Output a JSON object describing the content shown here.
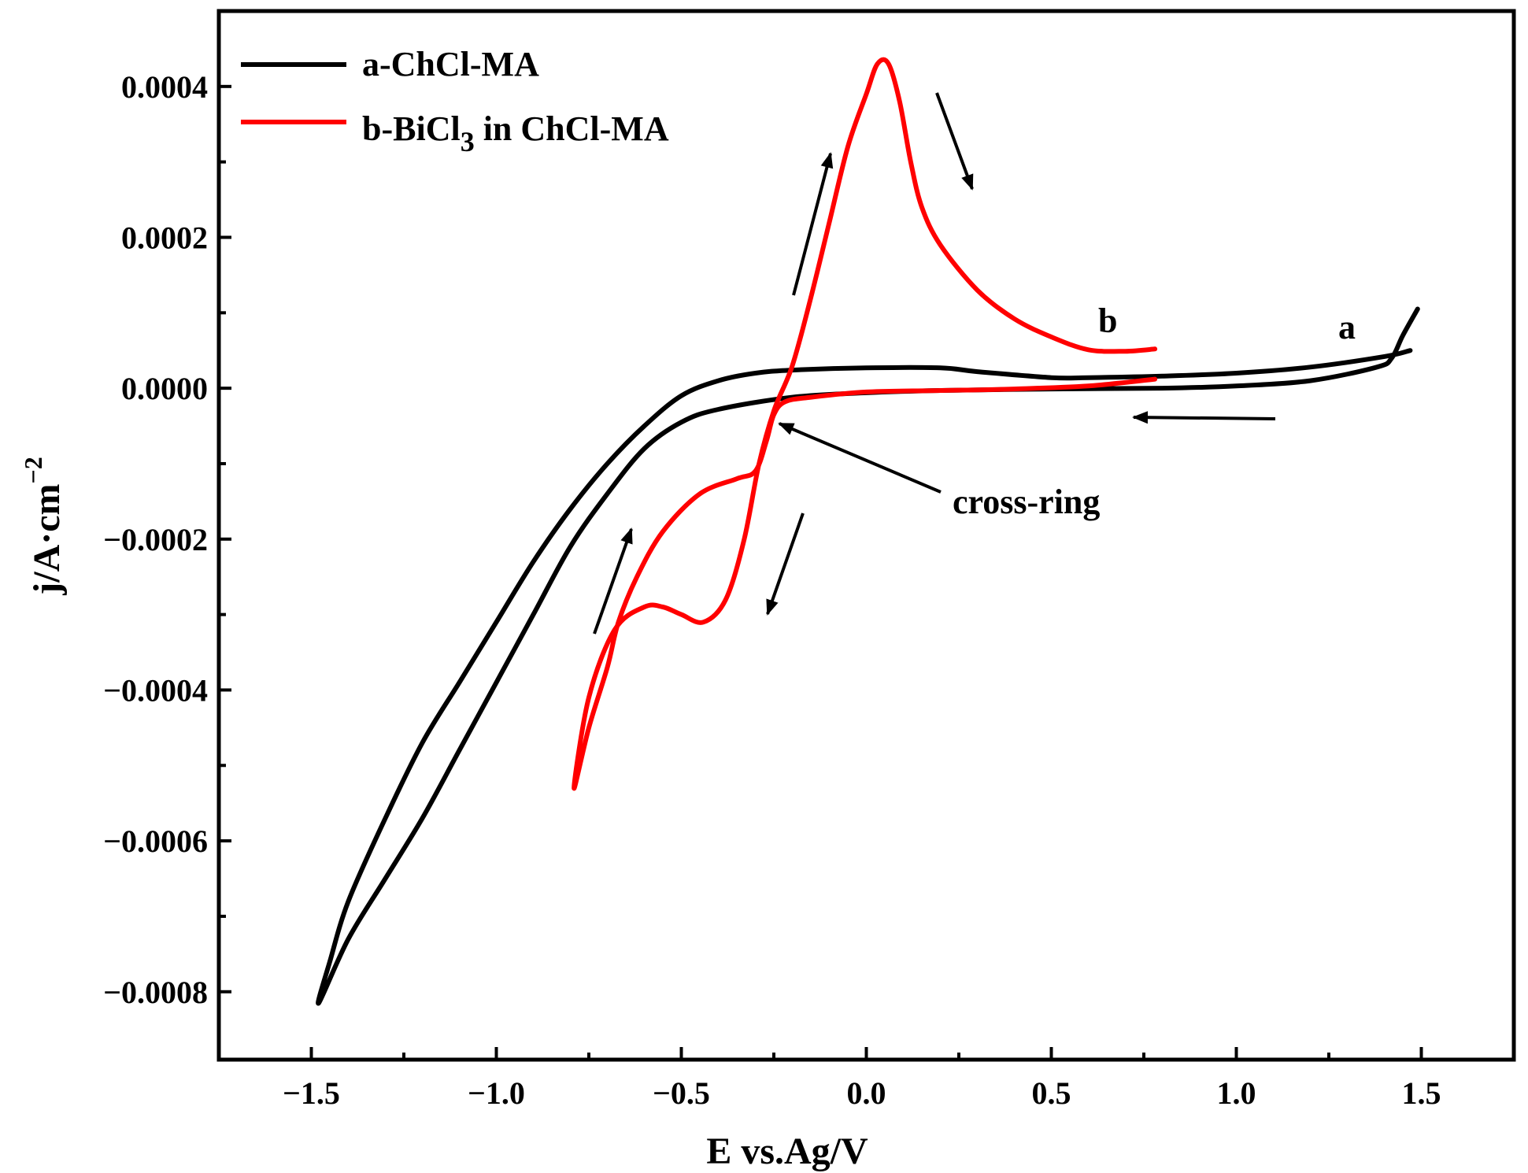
{
  "chart_data": {
    "type": "line",
    "title": "",
    "xlabel": "E vs.Ag/V",
    "ylabel_main": "j/A·cm",
    "ylabel_sup": "−2",
    "xlim": [
      -1.75,
      1.75
    ],
    "ylim": [
      -0.00089,
      0.0005
    ],
    "x_ticks": [
      {
        "value": -1.5,
        "label": "−1.5"
      },
      {
        "value": -1.0,
        "label": "−1.0"
      },
      {
        "value": -0.5,
        "label": "−0.5"
      },
      {
        "value": 0.0,
        "label": "0.0"
      },
      {
        "value": 0.5,
        "label": "0.5"
      },
      {
        "value": 1.0,
        "label": "1.0"
      },
      {
        "value": 1.5,
        "label": "1.5"
      }
    ],
    "x_minor": [
      -1.25,
      -0.75,
      -0.25,
      0.25,
      0.75,
      1.25
    ],
    "y_ticks": [
      {
        "value": 0.0004,
        "label": "0.0004"
      },
      {
        "value": 0.0002,
        "label": "0.0002"
      },
      {
        "value": 0.0,
        "label": "0.0000"
      },
      {
        "value": -0.0002,
        "label": "−0.0002"
      },
      {
        "value": -0.0004,
        "label": "−0.0004"
      },
      {
        "value": -0.0006,
        "label": "−0.0006"
      },
      {
        "value": -0.0008,
        "label": "−0.0008"
      }
    ],
    "y_minor": [
      0.0003,
      0.0001,
      -0.0001,
      -0.0003,
      -0.0005,
      -0.0007
    ],
    "series": [
      {
        "name": "a-ChCl-MA",
        "color": "#000000",
        "points": [
          [
            1.49,
            0.000105
          ],
          [
            1.45,
            7e-05
          ],
          [
            1.42,
            4e-05
          ],
          [
            1.38,
            2.8e-05
          ],
          [
            1.2,
            1e-05
          ],
          [
            1.0,
            3e-06
          ],
          [
            0.8,
            0.0
          ],
          [
            0.5,
            -1e-06
          ],
          [
            0.2,
            -3e-06
          ],
          [
            0.0,
            -6e-06
          ],
          [
            -0.2,
            -1.2e-05
          ],
          [
            -0.4,
            -2.8e-05
          ],
          [
            -0.5,
            -4.5e-05
          ],
          [
            -0.6,
            -8e-05
          ],
          [
            -0.7,
            -0.00014
          ],
          [
            -0.8,
            -0.00021
          ],
          [
            -0.9,
            -0.0003
          ],
          [
            -1.0,
            -0.00039
          ],
          [
            -1.1,
            -0.00048
          ],
          [
            -1.2,
            -0.00057
          ],
          [
            -1.3,
            -0.00065
          ],
          [
            -1.4,
            -0.00073
          ],
          [
            -1.48,
            -0.000815
          ],
          [
            -1.45,
            -0.00076
          ],
          [
            -1.4,
            -0.00068
          ],
          [
            -1.3,
            -0.00057
          ],
          [
            -1.2,
            -0.00047
          ],
          [
            -1.1,
            -0.00039
          ],
          [
            -1.0,
            -0.00031
          ],
          [
            -0.9,
            -0.00023
          ],
          [
            -0.8,
            -0.00016
          ],
          [
            -0.7,
            -0.0001
          ],
          [
            -0.6,
            -5e-05
          ],
          [
            -0.5,
            -1e-05
          ],
          [
            -0.4,
            1e-05
          ],
          [
            -0.3,
            2e-05
          ],
          [
            -0.2,
            2.4e-05
          ],
          [
            0.0,
            2.7e-05
          ],
          [
            0.2,
            2.7e-05
          ],
          [
            0.3,
            2.2e-05
          ],
          [
            0.5,
            1.4e-05
          ],
          [
            0.6,
            1.4e-05
          ],
          [
            0.8,
            1.6e-05
          ],
          [
            1.0,
            2e-05
          ],
          [
            1.2,
            2.8e-05
          ],
          [
            1.4,
            4.2e-05
          ],
          [
            1.47,
            5e-05
          ]
        ]
      },
      {
        "name": "b-BiCl",
        "color": "#ff0000",
        "points": [
          [
            0.78,
            1.2e-05
          ],
          [
            0.6,
            3e-06
          ],
          [
            0.4,
            -1e-06
          ],
          [
            0.2,
            -3e-06
          ],
          [
            0.0,
            -5e-06
          ],
          [
            -0.15,
            -1.2e-05
          ],
          [
            -0.22,
            -1.8e-05
          ],
          [
            -0.25,
            -3.5e-05
          ],
          [
            -0.27,
            -7e-05
          ],
          [
            -0.3,
            -0.00011
          ],
          [
            -0.35,
            -0.00012
          ],
          [
            -0.45,
            -0.00014
          ],
          [
            -0.55,
            -0.00019
          ],
          [
            -0.62,
            -0.00025
          ],
          [
            -0.67,
            -0.00031
          ],
          [
            -0.7,
            -0.00037
          ],
          [
            -0.75,
            -0.00045
          ],
          [
            -0.79,
            -0.00053
          ],
          [
            -0.75,
            -0.00041
          ],
          [
            -0.68,
            -0.00032
          ],
          [
            -0.6,
            -0.00029
          ],
          [
            -0.55,
            -0.00029
          ],
          [
            -0.5,
            -0.0003
          ],
          [
            -0.44,
            -0.00031
          ],
          [
            -0.38,
            -0.00028
          ],
          [
            -0.33,
            -0.0002
          ],
          [
            -0.29,
            -0.0001
          ],
          [
            -0.25,
            -3e-05
          ],
          [
            -0.2,
            3e-05
          ],
          [
            -0.15,
            0.00012
          ],
          [
            -0.1,
            0.00022
          ],
          [
            -0.05,
            0.00032
          ],
          [
            0.0,
            0.00039
          ],
          [
            0.03,
            0.00043
          ],
          [
            0.06,
            0.00043
          ],
          [
            0.09,
            0.00038
          ],
          [
            0.12,
            0.0003
          ],
          [
            0.15,
            0.00024
          ],
          [
            0.2,
            0.00019
          ],
          [
            0.3,
            0.00013
          ],
          [
            0.4,
            9.2e-05
          ],
          [
            0.5,
            6.8e-05
          ],
          [
            0.6,
            5.1e-05
          ],
          [
            0.7,
            4.9e-05
          ],
          [
            0.78,
            5.2e-05
          ]
        ]
      }
    ],
    "legend": {
      "position": "top-left",
      "entries": [
        {
          "text": "a-ChCl-MA",
          "color": "#000000"
        },
        {
          "text": "b-BiCl",
          "sub": "3",
          "after": " in ChCl-MA",
          "color": "#ff0000"
        }
      ]
    },
    "annotations": {
      "curve_a_label": "a",
      "curve_b_label": "b",
      "cross_ring_label": "cross-ring"
    }
  }
}
